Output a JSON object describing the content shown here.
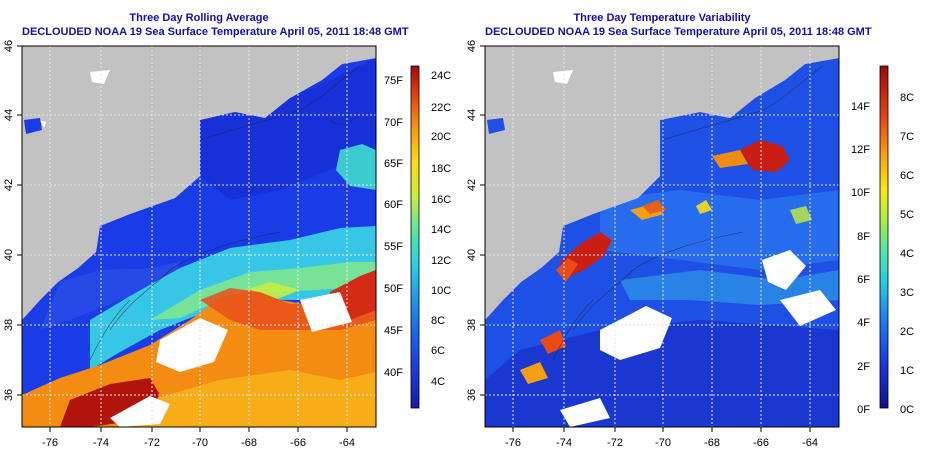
{
  "colors": {
    "land": "#c2c2c2",
    "grid": "#dcdcdc",
    "title_blue": "#1010a8"
  },
  "left_panel": {
    "title": "Three Day Rolling Average",
    "subtitle": "DECLOUDED NOAA 19 Sea Surface Temperature April 05, 2011 18:48 GMT",
    "x_ticks": [
      "-76",
      "-74",
      "-72",
      "-70",
      "-68",
      "-66",
      "-64"
    ],
    "y_ticks": [
      "46",
      "44",
      "42",
      "40",
      "38",
      "36"
    ],
    "colorbar_fahrenheit": [
      "75F",
      "70F",
      "65F",
      "60F",
      "55F",
      "50F",
      "45F",
      "40F"
    ],
    "colorbar_celsius": [
      "24C",
      "22C",
      "20C",
      "18C",
      "16C",
      "14C",
      "12C",
      "10C",
      "8C",
      "6C",
      "4C"
    ]
  },
  "right_panel": {
    "title": "Three Day Temperature Variability",
    "subtitle": "DECLOUDED NOAA 19 Sea Surface Temperature April 05, 2011 18:48 GMT",
    "x_ticks": [
      "-76",
      "-74",
      "-72",
      "-70",
      "-68",
      "-66",
      "-64"
    ],
    "y_ticks": [
      "46",
      "44",
      "42",
      "40",
      "38",
      "36"
    ],
    "colorbar_fahrenheit": [
      "14F",
      "12F",
      "10F",
      "8F",
      "6F",
      "4F",
      "2F",
      "0F"
    ],
    "colorbar_celsius": [
      "8C",
      "7C",
      "6C",
      "5C",
      "4C",
      "3C",
      "2C",
      "1C",
      "0C"
    ]
  }
}
